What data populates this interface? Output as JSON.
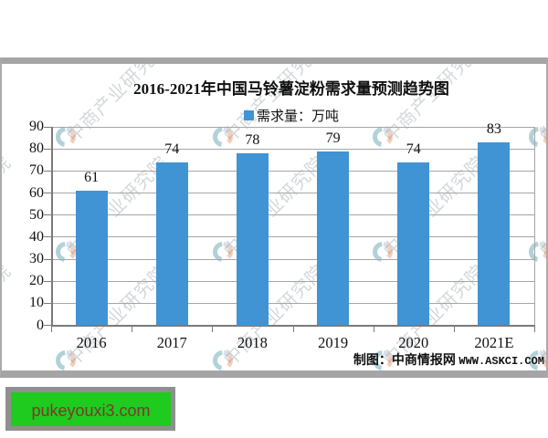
{
  "title": "2016-2021年中国马铃薯淀粉需求量预测趋势图",
  "legend": {
    "label": "需求量：万吨",
    "swatch_color": "#4094D4"
  },
  "chart_data": {
    "type": "bar",
    "categories": [
      "2016",
      "2017",
      "2018",
      "2019",
      "2020",
      "2021E"
    ],
    "values": [
      61,
      74,
      78,
      79,
      74,
      83
    ],
    "series_name": "需求量",
    "unit": "万吨",
    "title": "2016-2021年中国马铃薯淀粉需求量预测趋势图",
    "ylim": [
      0,
      90
    ],
    "yticks": [
      0,
      10,
      20,
      30,
      40,
      50,
      60,
      70,
      80,
      90
    ],
    "grid": true,
    "legend_position": "top-center",
    "bar_color": "#4094D4"
  },
  "credit": {
    "text": "制图：中商情报网",
    "url": "WWW.ASKCI.COM"
  },
  "watermark": {
    "text": "中商产业研究院",
    "logo_colors": {
      "teal": "#7FB3C0",
      "salmon": "#F0B091",
      "gray": "#C3CDD4"
    }
  },
  "overlay": {
    "label": "pukeyouxi3.com",
    "bg_color": "#1ECB1E",
    "border_color": "#8F8F8F",
    "text_color": "#7B3A2C"
  }
}
